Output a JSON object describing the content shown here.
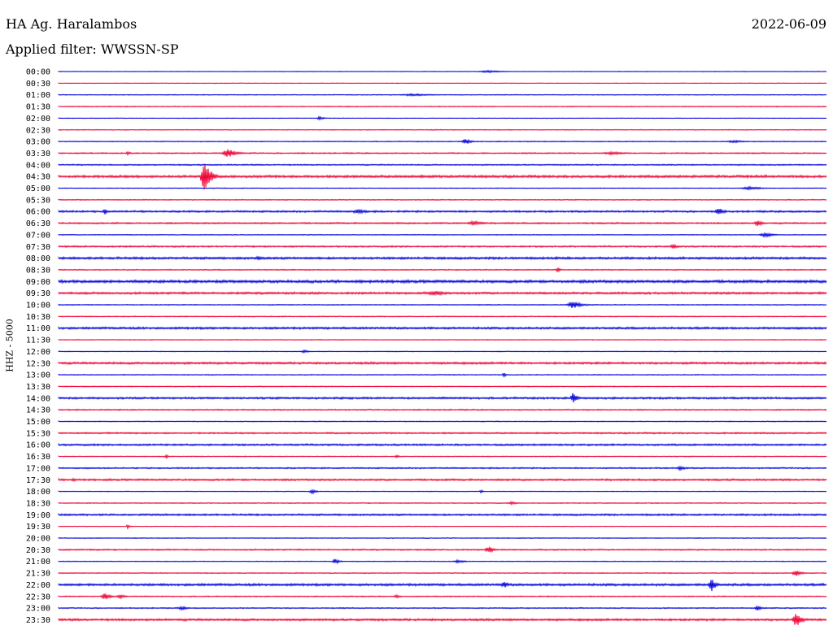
{
  "header": {
    "station": "HA Ag. Haralambos",
    "date": "2022-06-09",
    "filter_text": "Applied filter: WWSSN-SP",
    "channel": "HHZ - 5000"
  },
  "colors": {
    "even_row": "#0000dd",
    "odd_row": "#ee0033",
    "background": "#ffffff"
  },
  "chart_data": {
    "type": "line",
    "subtype": "helicorder",
    "title": "HA Ag. Haralambos",
    "date": "2022-06-09",
    "filter": "WWSSN-SP",
    "ylabel": "HHZ - 5000",
    "row_labels": [
      "00:00",
      "00:30",
      "01:00",
      "01:30",
      "02:00",
      "02:30",
      "03:00",
      "03:30",
      "04:00",
      "04:30",
      "05:00",
      "05:30",
      "06:00",
      "06:30",
      "07:00",
      "07:30",
      "08:00",
      "08:30",
      "09:00",
      "09:30",
      "10:00",
      "10:30",
      "11:00",
      "11:30",
      "12:00",
      "12:30",
      "13:00",
      "13:30",
      "14:00",
      "14:30",
      "15:00",
      "15:30",
      "16:00",
      "16:30",
      "17:00",
      "17:30",
      "18:00",
      "18:30",
      "19:00",
      "19:30",
      "20:00",
      "20:30",
      "21:00",
      "21:30",
      "22:00",
      "22:30",
      "23:00",
      "23:30"
    ],
    "row_minutes": 30,
    "row_colors": [
      "blue",
      "red"
    ],
    "noise": [
      0.4,
      0.4,
      0.5,
      0.6,
      0.4,
      0.5,
      0.6,
      0.8,
      0.8,
      1.6,
      0.5,
      0.6,
      1.2,
      1.0,
      0.5,
      1.0,
      1.5,
      0.7,
      1.8,
      1.4,
      0.6,
      0.6,
      1.4,
      0.5,
      0.5,
      1.4,
      0.6,
      0.6,
      1.3,
      0.8,
      0.6,
      1.0,
      1.2,
      0.6,
      0.9,
      1.2,
      0.5,
      0.6,
      1.2,
      0.4,
      0.5,
      0.9,
      0.5,
      0.6,
      1.5,
      0.7,
      0.7,
      1.4
    ],
    "events": [
      {
        "row": 0,
        "t": 0.56,
        "amp": 1.5,
        "dur": 0.06
      },
      {
        "row": 2,
        "t": 0.46,
        "amp": 1.5,
        "dur": 0.08
      },
      {
        "row": 4,
        "t": 0.34,
        "amp": 2.5,
        "dur": 0.015
      },
      {
        "row": 6,
        "t": 0.53,
        "amp": 4,
        "dur": 0.02
      },
      {
        "row": 6,
        "t": 0.88,
        "amp": 1.5,
        "dur": 0.06
      },
      {
        "row": 7,
        "t": 0.09,
        "amp": 2,
        "dur": 0.015
      },
      {
        "row": 7,
        "t": 0.22,
        "amp": 6,
        "dur": 0.03
      },
      {
        "row": 7,
        "t": 0.72,
        "amp": 2,
        "dur": 0.06
      },
      {
        "row": 9,
        "t": 0.19,
        "amp": 25,
        "dur": 0.02
      },
      {
        "row": 9,
        "t": 0.92,
        "amp": 2,
        "dur": 0.04
      },
      {
        "row": 10,
        "t": 0.9,
        "amp": 2,
        "dur": 0.05
      },
      {
        "row": 12,
        "t": 0.06,
        "amp": 5,
        "dur": 0.008
      },
      {
        "row": 12,
        "t": 0.39,
        "amp": 3,
        "dur": 0.04
      },
      {
        "row": 12,
        "t": 0.86,
        "amp": 5,
        "dur": 0.02
      },
      {
        "row": 13,
        "t": 0.54,
        "amp": 3,
        "dur": 0.04
      },
      {
        "row": 13,
        "t": 0.91,
        "amp": 5,
        "dur": 0.015
      },
      {
        "row": 14,
        "t": 0.92,
        "amp": 3,
        "dur": 0.03
      },
      {
        "row": 15,
        "t": 0.8,
        "amp": 3,
        "dur": 0.02
      },
      {
        "row": 16,
        "t": 0.26,
        "amp": 3,
        "dur": 0.015
      },
      {
        "row": 17,
        "t": 0.65,
        "amp": 4,
        "dur": 0.008
      },
      {
        "row": 19,
        "t": 0.49,
        "amp": 3,
        "dur": 0.05
      },
      {
        "row": 20,
        "t": 0.67,
        "amp": 5,
        "dur": 0.03
      },
      {
        "row": 24,
        "t": 0.32,
        "amp": 2,
        "dur": 0.02
      },
      {
        "row": 26,
        "t": 0.58,
        "amp": 3,
        "dur": 0.01
      },
      {
        "row": 28,
        "t": 0.67,
        "amp": 7,
        "dur": 0.015
      },
      {
        "row": 33,
        "t": 0.14,
        "amp": 3,
        "dur": 0.008
      },
      {
        "row": 33,
        "t": 0.44,
        "amp": 3,
        "dur": 0.008
      },
      {
        "row": 34,
        "t": 0.81,
        "amp": 3,
        "dur": 0.02
      },
      {
        "row": 35,
        "t": 0.02,
        "amp": 3,
        "dur": 0.008
      },
      {
        "row": 36,
        "t": 0.33,
        "amp": 3,
        "dur": 0.015
      },
      {
        "row": 36,
        "t": 0.55,
        "amp": 3,
        "dur": 0.008
      },
      {
        "row": 37,
        "t": 0.59,
        "amp": 2,
        "dur": 0.02
      },
      {
        "row": 39,
        "t": 0.09,
        "amp": 3,
        "dur": 0.008
      },
      {
        "row": 41,
        "t": 0.56,
        "amp": 5,
        "dur": 0.02
      },
      {
        "row": 42,
        "t": 0.36,
        "amp": 4,
        "dur": 0.015
      },
      {
        "row": 42,
        "t": 0.52,
        "amp": 2,
        "dur": 0.03
      },
      {
        "row": 43,
        "t": 0.96,
        "amp": 4,
        "dur": 0.02
      },
      {
        "row": 44,
        "t": 0.58,
        "amp": 4,
        "dur": 0.02
      },
      {
        "row": 44,
        "t": 0.85,
        "amp": 10,
        "dur": 0.015
      },
      {
        "row": 45,
        "t": 0.06,
        "amp": 5,
        "dur": 0.02
      },
      {
        "row": 45,
        "t": 0.08,
        "amp": 3,
        "dur": 0.02
      },
      {
        "row": 45,
        "t": 0.44,
        "amp": 2,
        "dur": 0.02
      },
      {
        "row": 46,
        "t": 0.16,
        "amp": 2,
        "dur": 0.03
      },
      {
        "row": 46,
        "t": 0.91,
        "amp": 3,
        "dur": 0.02
      },
      {
        "row": 47,
        "t": 0.96,
        "amp": 10,
        "dur": 0.02
      }
    ]
  }
}
